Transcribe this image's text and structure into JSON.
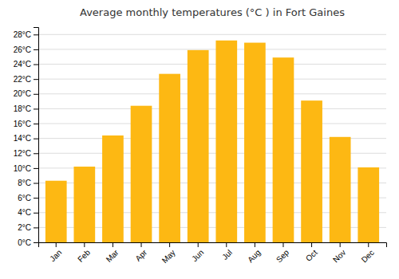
{
  "chart_data": {
    "type": "bar",
    "title": "Average monthly temperatures (°C ) in Fort Gaines",
    "categories": [
      "Jan",
      "Feb",
      "Mar",
      "Apr",
      "May",
      "Jun",
      "Jul",
      "Aug",
      "Sep",
      "Oct",
      "Nov",
      "Dec"
    ],
    "values": [
      8.3,
      10.2,
      14.4,
      18.4,
      22.7,
      25.9,
      27.2,
      26.9,
      24.9,
      19.1,
      14.2,
      10.1
    ],
    "color": "#FDB813",
    "ylim": [
      0,
      29
    ],
    "yticks": [
      {
        "value": 0,
        "label": "0°C"
      },
      {
        "value": 2,
        "label": "2°C"
      },
      {
        "value": 4,
        "label": "4°C"
      },
      {
        "value": 6,
        "label": "6°C"
      },
      {
        "value": 8,
        "label": "8°C"
      },
      {
        "value": 10,
        "label": "10°C"
      },
      {
        "value": 12,
        "label": "12°C"
      },
      {
        "value": 14,
        "label": "14°C"
      },
      {
        "value": 16,
        "label": "16°C"
      },
      {
        "value": 18,
        "label": "18°C"
      },
      {
        "value": 20,
        "label": "20°C"
      },
      {
        "value": 22,
        "label": "22°C"
      },
      {
        "value": 24,
        "label": "24°C"
      },
      {
        "value": 26,
        "label": "26°C"
      },
      {
        "value": 28,
        "label": "28°C"
      }
    ],
    "grid": true
  }
}
